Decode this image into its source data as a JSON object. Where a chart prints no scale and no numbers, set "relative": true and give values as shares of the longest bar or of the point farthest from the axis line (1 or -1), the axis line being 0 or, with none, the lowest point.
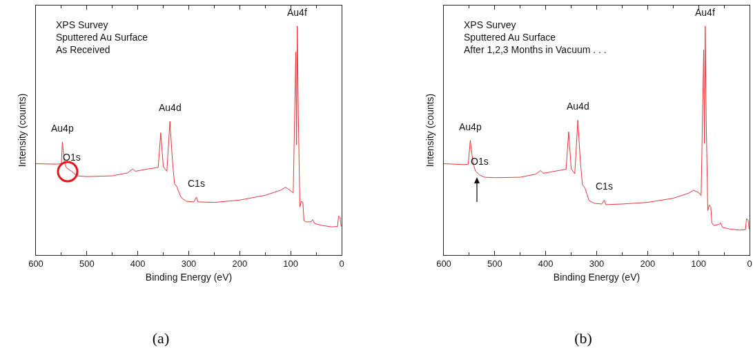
{
  "chart_data": [
    {
      "type": "line",
      "title": "(a)",
      "xlabel": "Binding Energy (eV)",
      "ylabel": "Intensity (counts)",
      "relative": true,
      "xlim": [
        600,
        0
      ],
      "xticks": [
        0,
        100,
        200,
        300,
        400,
        500,
        600
      ],
      "grid": false,
      "marker": "none",
      "line_style": "solid",
      "annotations": [
        "XPS Survey",
        "Sputtered Au Surface",
        "As Received",
        {
          "text": "Au4p",
          "x": 548,
          "y": 0.494
        },
        {
          "text": "O1s",
          "x": 530,
          "y": 0.366
        },
        {
          "text": "Au4d",
          "x": 337,
          "y": 0.584
        },
        {
          "text": "C1s",
          "x": 285,
          "y": 0.253
        },
        {
          "text": "Au4f",
          "x": 87,
          "y": 1.0
        }
      ],
      "series": [
        {
          "color": "#e8343a",
          "x": [
            600,
            560,
            550,
            548,
            544,
            540,
            530,
            520,
            500,
            450,
            420,
            410,
            405,
            380,
            360,
            355,
            350,
            343,
            337,
            332,
            328,
            324,
            315,
            305,
            290,
            285,
            282,
            250,
            200,
            150,
            120,
            110,
            100,
            95,
            90,
            88.5,
            87,
            85,
            82,
            79,
            76,
            74,
            70,
            60,
            57,
            53,
            40,
            20,
            8,
            6,
            3,
            1
          ],
          "values": [
            0.399,
            0.397,
            0.399,
            0.494,
            0.406,
            0.381,
            0.366,
            0.346,
            0.343,
            0.346,
            0.359,
            0.376,
            0.366,
            0.376,
            0.383,
            0.534,
            0.386,
            0.366,
            0.584,
            0.411,
            0.311,
            0.301,
            0.251,
            0.235,
            0.232,
            0.253,
            0.232,
            0.23,
            0.24,
            0.261,
            0.283,
            0.296,
            0.281,
            0.271,
            0.887,
            0.481,
            1.0,
            0.611,
            0.21,
            0.235,
            0.23,
            0.15,
            0.145,
            0.145,
            0.155,
            0.138,
            0.13,
            0.123,
            0.125,
            0.17,
            0.165,
            0.125
          ]
        }
      ]
    },
    {
      "type": "line",
      "title": "(b)",
      "xlabel": "Binding Energy (eV)",
      "ylabel": "Intensity (counts)",
      "relative": true,
      "xlim": [
        600,
        0
      ],
      "xticks": [
        0,
        100,
        200,
        300,
        400,
        500,
        600
      ],
      "grid": false,
      "marker": "none",
      "line_style": "solid",
      "annotations": [
        "XPS Survey",
        "Sputtered Au Surface",
        "After 1,2,3 Months in Vacuum . . .",
        {
          "text": "Au4p",
          "x": 548,
          "y": 0.501
        },
        {
          "text": "O1s",
          "x": 530,
          "y": 0.35
        },
        {
          "text": "Au4d",
          "x": 337,
          "y": 0.589
        },
        {
          "text": "C1s",
          "x": 285,
          "y": 0.24
        },
        {
          "text": "Au4f",
          "x": 87,
          "y": 1.0
        }
      ],
      "series": [
        {
          "color": "#e8343a",
          "x": [
            600,
            560,
            552,
            548,
            543,
            538,
            530,
            520,
            500,
            450,
            420,
            410,
            405,
            380,
            360,
            355,
            350,
            343,
            337,
            332,
            328,
            323,
            315,
            305,
            290,
            285,
            282,
            250,
            200,
            150,
            120,
            110,
            100,
            95,
            90,
            88.5,
            87,
            85,
            82,
            79,
            76,
            74,
            70,
            60,
            57,
            53,
            40,
            20,
            8,
            6,
            3,
            1
          ],
          "values": [
            0.399,
            0.395,
            0.397,
            0.501,
            0.407,
            0.367,
            0.35,
            0.34,
            0.338,
            0.34,
            0.353,
            0.369,
            0.357,
            0.367,
            0.375,
            0.538,
            0.377,
            0.355,
            0.589,
            0.407,
            0.308,
            0.293,
            0.238,
            0.226,
            0.223,
            0.24,
            0.22,
            0.223,
            0.23,
            0.248,
            0.27,
            0.283,
            0.273,
            0.26,
            0.896,
            0.487,
            1.0,
            0.586,
            0.194,
            0.218,
            0.209,
            0.141,
            0.129,
            0.134,
            0.141,
            0.121,
            0.114,
            0.109,
            0.111,
            0.159,
            0.154,
            0.114
          ]
        }
      ]
    }
  ]
}
